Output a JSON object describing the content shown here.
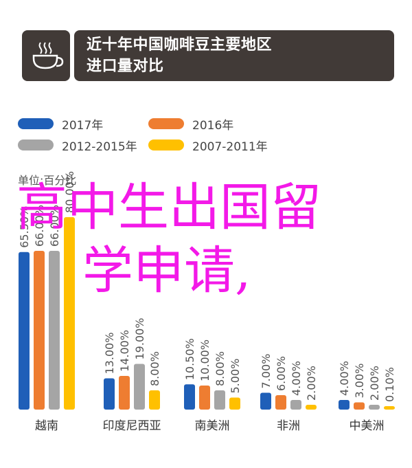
{
  "header": {
    "title_line1": "近十年中国咖啡豆主要地区",
    "title_line2": "进口量对比",
    "icon": "coffee-cup-icon"
  },
  "unit_label": "单位:百分比",
  "overlay_text": {
    "line1": "高中生出国留",
    "line2": "学申请,"
  },
  "colors": {
    "header_bg": "#413a37",
    "overlay_text": "#f319e8"
  },
  "chart_data": {
    "type": "bar",
    "categories": [
      "越南",
      "印度尼西亚",
      "南美洲",
      "非洲",
      "中美洲"
    ],
    "series": [
      {
        "name": "2017年",
        "color": "#1f5fb8",
        "values": [
          65.5,
          13.0,
          10.5,
          7.0,
          4.0
        ],
        "labels": [
          "65.50%",
          "13.00%",
          "10.50%",
          "7.00%",
          "4.00%"
        ]
      },
      {
        "name": "2016年",
        "color": "#ee7d31",
        "values": [
          66.0,
          14.0,
          10.0,
          6.0,
          3.0
        ],
        "labels": [
          "66.00%",
          "14.00%",
          "10.00%",
          "6.00%",
          "3.00%"
        ]
      },
      {
        "name": "2012-2015年",
        "color": "#a5a5a5",
        "values": [
          66.0,
          19.0,
          8.0,
          4.0,
          2.0
        ],
        "labels": [
          "66.00%",
          "19.00%",
          "8.00%",
          "4.00%",
          "2.00%"
        ]
      },
      {
        "name": "2007-2011年",
        "color": "#ffc000",
        "values": [
          80.0,
          8.0,
          5.0,
          2.0,
          0.1
        ],
        "labels": [
          "80.00%",
          "8.00%",
          "5.00%",
          "2.00%",
          "0.10%"
        ]
      }
    ],
    "legend_position": "top-left",
    "grid": false
  }
}
